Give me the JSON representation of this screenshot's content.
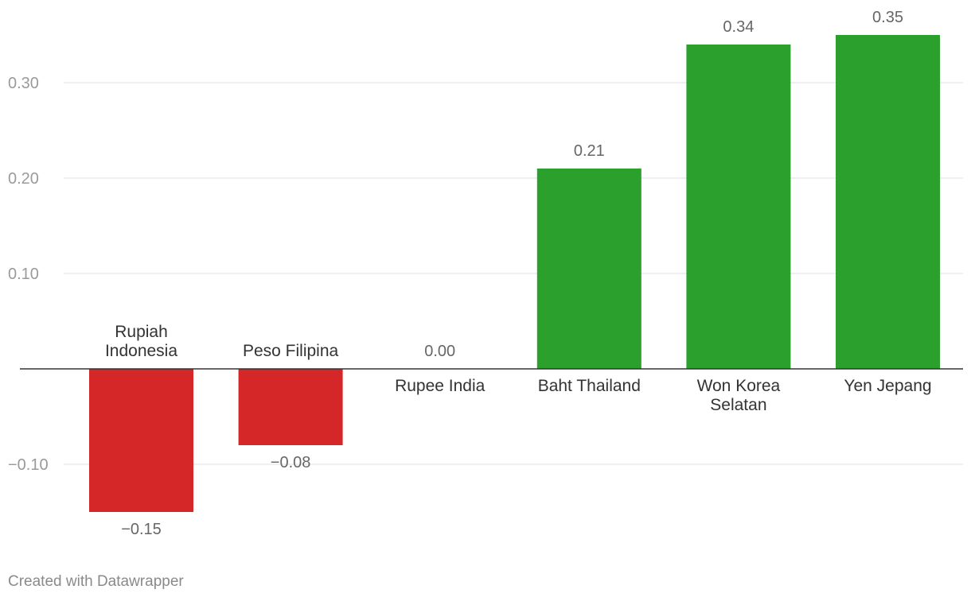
{
  "chart_data": {
    "type": "bar",
    "categories": [
      [
        "Rupiah",
        "Indonesia"
      ],
      [
        "Peso Filipina"
      ],
      [
        "Rupee India"
      ],
      [
        "Baht Thailand"
      ],
      [
        "Won Korea",
        "Selatan"
      ],
      [
        "Yen Jepang"
      ]
    ],
    "values": [
      -0.15,
      -0.08,
      0.0,
      0.21,
      0.34,
      0.35
    ],
    "value_labels": [
      "−0.15",
      "−0.08",
      "0.00",
      "0.21",
      "0.34",
      "0.35"
    ],
    "ylim": [
      -0.17,
      0.36
    ],
    "yticks": [
      {
        "value": 0.3,
        "label": "0.30"
      },
      {
        "value": 0.2,
        "label": "0.20"
      },
      {
        "value": 0.1,
        "label": "0.10"
      },
      {
        "value": -0.1,
        "label": "−0.10"
      }
    ],
    "colors": {
      "positive": "#2ca02c",
      "negative": "#d62728",
      "grid": "#e5e5e5",
      "baseline": "#333333",
      "tick_label": "#9a9a9a",
      "value_label": "#666666",
      "category_label": "#333333"
    },
    "grid": true,
    "title": "",
    "xlabel": "",
    "ylabel": ""
  },
  "footer": {
    "credit": "Created with Datawrapper"
  }
}
